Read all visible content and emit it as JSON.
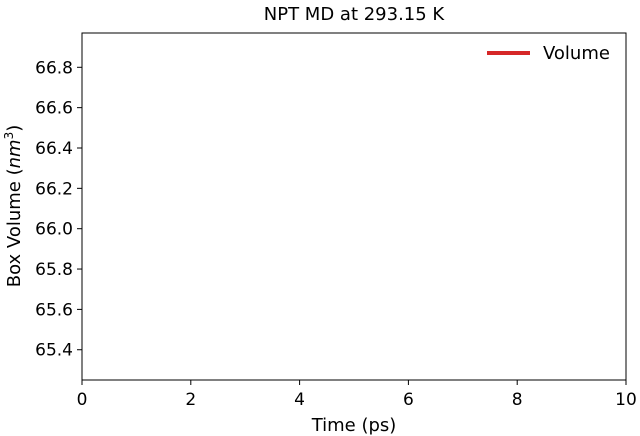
{
  "chart_data": {
    "type": "line",
    "title": "NPT MD at 293.15 K",
    "xlabel": "Time (ps)",
    "ylabel_main": "Box Volume (",
    "ylabel_unit": "nm",
    "ylabel_exp": "3",
    "ylabel_close": ")",
    "xlim": [
      0,
      10
    ],
    "ylim": [
      65.25,
      66.97
    ],
    "xticks": [
      0,
      2,
      4,
      6,
      8,
      10
    ],
    "xtick_labels": [
      "0",
      "2",
      "4",
      "6",
      "8",
      "10"
    ],
    "yticks": [
      65.4,
      65.6,
      65.8,
      66.0,
      66.2,
      66.4,
      66.6,
      66.8
    ],
    "ytick_labels": [
      "65.4",
      "65.6",
      "65.8",
      "66.0",
      "66.2",
      "66.4",
      "66.6",
      "66.8"
    ],
    "grid": false,
    "legend_position": "top-right",
    "series": [
      {
        "name": "Volume",
        "color": "#d62728",
        "x": [],
        "y": []
      }
    ]
  }
}
